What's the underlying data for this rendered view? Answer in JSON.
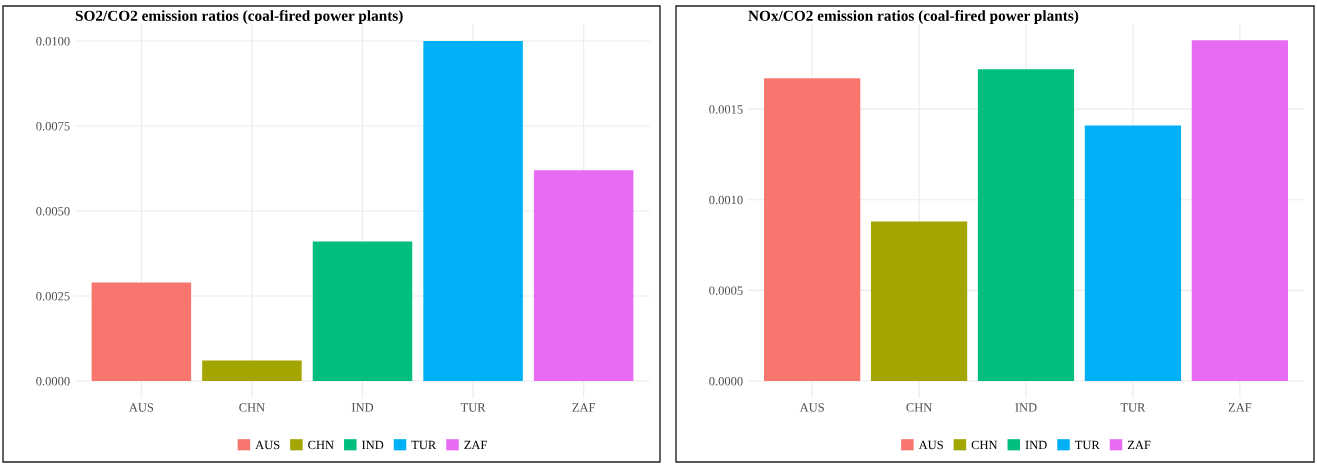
{
  "chart_data": [
    {
      "type": "bar",
      "title": "SO2/CO2 emission ratios (coal-fired power plants)",
      "categories": [
        "AUS",
        "CHN",
        "IND",
        "TUR",
        "ZAF"
      ],
      "series": [
        {
          "name": "AUS",
          "color": "#f8766d",
          "values": [
            0.0029,
            null,
            null,
            null,
            null
          ]
        },
        {
          "name": "CHN",
          "color": "#a3a500",
          "values": [
            null,
            0.0006,
            null,
            null,
            null
          ]
        },
        {
          "name": "IND",
          "color": "#00bf7d",
          "values": [
            null,
            null,
            0.0041,
            null,
            null
          ]
        },
        {
          "name": "TUR",
          "color": "#00b0f6",
          "values": [
            null,
            null,
            null,
            0.01,
            null
          ]
        },
        {
          "name": "ZAF",
          "color": "#e76bf3",
          "values": [
            null,
            null,
            null,
            null,
            0.0062
          ]
        }
      ],
      "ylim": [
        -0.0005,
        0.0105
      ],
      "yticks": [
        {
          "value": 0,
          "label": "0.0000"
        },
        {
          "value": 0.0025,
          "label": "0.0025"
        },
        {
          "value": 0.005,
          "label": "0.0050"
        },
        {
          "value": 0.0075,
          "label": "0.0075"
        },
        {
          "value": 0.01,
          "label": "0.0100"
        }
      ],
      "grid": true,
      "legend": "bottom"
    },
    {
      "type": "bar",
      "title": "NOx/CO2 emission ratios (coal-fired power plants)",
      "categories": [
        "AUS",
        "CHN",
        "IND",
        "TUR",
        "ZAF"
      ],
      "series": [
        {
          "name": "AUS",
          "color": "#f8766d",
          "values": [
            0.00167,
            null,
            null,
            null,
            null
          ]
        },
        {
          "name": "CHN",
          "color": "#a3a500",
          "values": [
            null,
            0.00088,
            null,
            null,
            null
          ]
        },
        {
          "name": "IND",
          "color": "#00bf7d",
          "values": [
            null,
            null,
            0.00172,
            null,
            null
          ]
        },
        {
          "name": "TUR",
          "color": "#00b0f6",
          "values": [
            null,
            null,
            null,
            0.00141,
            null
          ]
        },
        {
          "name": "ZAF",
          "color": "#e76bf3",
          "values": [
            null,
            null,
            null,
            null,
            0.00188
          ]
        }
      ],
      "ylim": [
        -9.4e-05,
        0.00197
      ],
      "yticks": [
        {
          "value": 0,
          "label": "0.0000"
        },
        {
          "value": 0.0005,
          "label": "0.0005"
        },
        {
          "value": 0.001,
          "label": "0.0010"
        },
        {
          "value": 0.0015,
          "label": "0.0015"
        }
      ],
      "grid": true,
      "legend": "bottom"
    }
  ]
}
